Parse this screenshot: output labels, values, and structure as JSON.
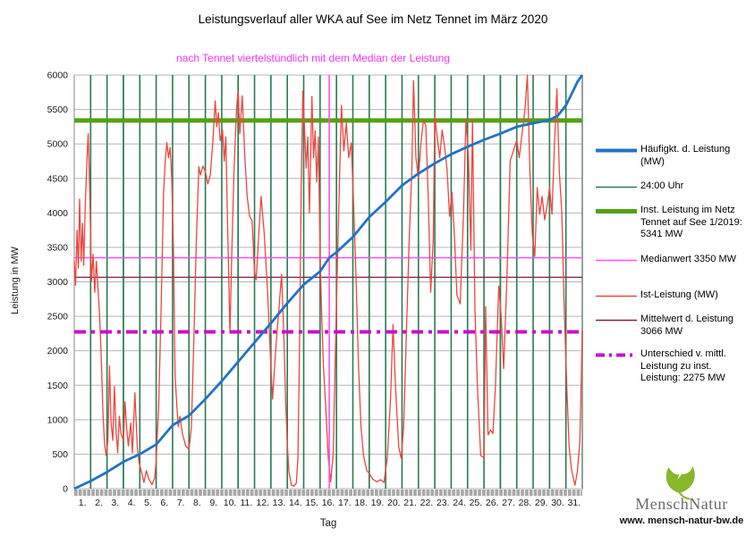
{
  "title": "Leistungsverlauf aller WKA auf See im Netz Tennet im März 2020",
  "subtitle": "nach Tennet viertelstündlich mit dem Median der Leistung",
  "axes": {
    "y_label": "Leistung in MW",
    "x_label": "Tag"
  },
  "legend": {
    "items": [
      {
        "label": "Häufigkt. d. Leistung (MW)",
        "color": "#2173c2",
        "width": 4,
        "dash": ""
      },
      {
        "label": "24:00 Uhr",
        "color": "#2a7a52",
        "width": 1.4,
        "dash": ""
      },
      {
        "label": "Inst. Leistung im Netz Tennet auf See 1/2019: 5341  MW",
        "color": "#55a014",
        "width": 5,
        "dash": ""
      },
      {
        "label": "Medianwert 3350 MW",
        "color": "#fb4ef7",
        "width": 1.6,
        "dash": ""
      },
      {
        "label": "Ist-Leistung (MW)",
        "color": "#ed4640",
        "width": 1.6,
        "dash": ""
      },
      {
        "label": "Mittelwert d. Leistung 3066 MW",
        "color": "#7c2150",
        "width": 1.4,
        "dash": ""
      },
      {
        "label": "Unterschied v. mittl. Leistung zu inst. Leistung: 2275 MW",
        "color": "#c90fc9",
        "width": 4,
        "dash": "10 5 3 5"
      }
    ]
  },
  "logo": {
    "brand": "MenschNatur",
    "url": "www. mensch-natur-bw.de"
  },
  "chart_data": {
    "type": "line",
    "title": "Leistungsverlauf aller WKA auf See im Netz Tennet im März 2020",
    "subtitle": "nach Tennet viertelstündlich mit dem Median der Leistung",
    "xlabel": "Tag",
    "ylabel": "Leistung in MW",
    "xlim": [
      0,
      31
    ],
    "ylim": [
      0,
      6000
    ],
    "grid": true,
    "legend_position": "right",
    "y_ticks": [
      0,
      500,
      1000,
      1500,
      2000,
      2500,
      3000,
      3500,
      4000,
      4500,
      5000,
      5500,
      6000
    ],
    "x_tick_labels": [
      "1.",
      "2.",
      "3.",
      "4.",
      "5.",
      "6.",
      "7.",
      "8.",
      "9.",
      "10.",
      "11.",
      "12.",
      "13.",
      "14.",
      "15.",
      "16.",
      "17.",
      "18.",
      "19.",
      "20.",
      "21.",
      "22.",
      "23.",
      "24.",
      "25.",
      "26.",
      "27.",
      "28.",
      "29.",
      "30.",
      "31."
    ],
    "day_lines_every_day": true,
    "pale_day_lines_at_days": [
      3,
      10,
      26
    ],
    "reference_lines": {
      "installed_capacity_mw": 5341,
      "median_mw": 3350,
      "mean_mw": 3066,
      "difference_mean_to_installed_mw": 2275,
      "median_vertical_day_position": 15.56
    },
    "series": [
      {
        "name": "Häufigkt. d. Leistung (MW)",
        "color": "#2173c2",
        "points": [
          [
            0,
            0
          ],
          [
            1,
            110
          ],
          [
            2,
            240
          ],
          [
            3,
            390
          ],
          [
            4,
            500
          ],
          [
            5,
            640
          ],
          [
            6,
            920
          ],
          [
            7,
            1060
          ],
          [
            8,
            1300
          ],
          [
            9,
            1560
          ],
          [
            10,
            1840
          ],
          [
            11,
            2120
          ],
          [
            12,
            2400
          ],
          [
            13,
            2690
          ],
          [
            14,
            2960
          ],
          [
            15,
            3150
          ],
          [
            15.56,
            3350
          ],
          [
            16,
            3430
          ],
          [
            17,
            3650
          ],
          [
            18,
            3940
          ],
          [
            19,
            4160
          ],
          [
            20,
            4400
          ],
          [
            21,
            4570
          ],
          [
            22,
            4720
          ],
          [
            23,
            4850
          ],
          [
            24,
            4960
          ],
          [
            25,
            5060
          ],
          [
            26,
            5150
          ],
          [
            27,
            5250
          ],
          [
            28,
            5300
          ],
          [
            29,
            5350
          ],
          [
            29.5,
            5410
          ],
          [
            30,
            5560
          ],
          [
            30.4,
            5750
          ],
          [
            30.7,
            5900
          ],
          [
            30.9,
            5970
          ],
          [
            31,
            6010
          ]
        ]
      },
      {
        "name": "Ist-Leistung (MW)",
        "color": "#ed4640",
        "points": [
          [
            0,
            3300
          ],
          [
            0.08,
            2950
          ],
          [
            0.17,
            3750
          ],
          [
            0.25,
            3200
          ],
          [
            0.33,
            4200
          ],
          [
            0.42,
            3300
          ],
          [
            0.5,
            3850
          ],
          [
            0.58,
            3240
          ],
          [
            0.67,
            4100
          ],
          [
            0.78,
            4800
          ],
          [
            0.85,
            5150
          ],
          [
            0.95,
            4300
          ],
          [
            1.05,
            3000
          ],
          [
            1.15,
            3400
          ],
          [
            1.25,
            2850
          ],
          [
            1.35,
            3300
          ],
          [
            1.45,
            2900
          ],
          [
            1.55,
            2500
          ],
          [
            1.65,
            1900
          ],
          [
            1.75,
            1100
          ],
          [
            1.85,
            650
          ],
          [
            1.95,
            480
          ],
          [
            2.05,
            700
          ],
          [
            2.15,
            1780
          ],
          [
            2.25,
            950
          ],
          [
            2.35,
            700
          ],
          [
            2.45,
            1480
          ],
          [
            2.55,
            850
          ],
          [
            2.65,
            520
          ],
          [
            2.75,
            1050
          ],
          [
            2.85,
            800
          ],
          [
            3,
            700
          ],
          [
            3.1,
            1260
          ],
          [
            3.2,
            880
          ],
          [
            3.3,
            620
          ],
          [
            3.45,
            950
          ],
          [
            3.55,
            520
          ],
          [
            3.7,
            1390
          ],
          [
            3.85,
            600
          ],
          [
            3.95,
            380
          ],
          [
            4.1,
            250
          ],
          [
            4.25,
            90
          ],
          [
            4.4,
            260
          ],
          [
            4.55,
            140
          ],
          [
            4.75,
            60
          ],
          [
            4.9,
            150
          ],
          [
            5,
            400
          ],
          [
            5.15,
            1200
          ],
          [
            5.3,
            2600
          ],
          [
            5.45,
            4300
          ],
          [
            5.55,
            4750
          ],
          [
            5.65,
            5020
          ],
          [
            5.75,
            4800
          ],
          [
            5.85,
            4950
          ],
          [
            5.95,
            4500
          ],
          [
            6.05,
            3500
          ],
          [
            6.15,
            1650
          ],
          [
            6.25,
            1250
          ],
          [
            6.35,
            900
          ],
          [
            6.45,
            1050
          ],
          [
            6.6,
            800
          ],
          [
            6.8,
            620
          ],
          [
            7,
            570
          ],
          [
            7.15,
            900
          ],
          [
            7.3,
            2200
          ],
          [
            7.45,
            3600
          ],
          [
            7.6,
            4670
          ],
          [
            7.7,
            4550
          ],
          [
            7.85,
            4680
          ],
          [
            8,
            4600
          ],
          [
            8.15,
            4420
          ],
          [
            8.3,
            4550
          ],
          [
            8.45,
            5000
          ],
          [
            8.6,
            5625
          ],
          [
            8.7,
            5250
          ],
          [
            8.8,
            5450
          ],
          [
            8.9,
            5050
          ],
          [
            9.05,
            5200
          ],
          [
            9.15,
            4750
          ],
          [
            9.25,
            5100
          ],
          [
            9.35,
            3900
          ],
          [
            9.5,
            2255
          ],
          [
            9.6,
            3300
          ],
          [
            9.75,
            4600
          ],
          [
            9.9,
            5500
          ],
          [
            10,
            5770
          ],
          [
            10.1,
            5150
          ],
          [
            10.25,
            5700
          ],
          [
            10.4,
            4850
          ],
          [
            10.55,
            4240
          ],
          [
            10.7,
            3950
          ],
          [
            10.85,
            3890
          ],
          [
            11,
            3150
          ],
          [
            11.1,
            3030
          ],
          [
            11.25,
            3650
          ],
          [
            11.4,
            4240
          ],
          [
            11.6,
            3680
          ],
          [
            11.8,
            2850
          ],
          [
            12,
            1750
          ],
          [
            12.1,
            1300
          ],
          [
            12.3,
            2050
          ],
          [
            12.5,
            2640
          ],
          [
            12.65,
            3110
          ],
          [
            12.8,
            2150
          ],
          [
            12.9,
            1250
          ],
          [
            13,
            650
          ],
          [
            13.1,
            250
          ],
          [
            13.25,
            50
          ],
          [
            13.4,
            35
          ],
          [
            13.55,
            80
          ],
          [
            13.65,
            450
          ],
          [
            13.75,
            2100
          ],
          [
            13.85,
            4400
          ],
          [
            13.95,
            5770
          ],
          [
            14.05,
            5250
          ],
          [
            14.15,
            4650
          ],
          [
            14.25,
            5100
          ],
          [
            14.35,
            4000
          ],
          [
            14.5,
            5690
          ],
          [
            14.6,
            4800
          ],
          [
            14.7,
            5190
          ],
          [
            14.8,
            4450
          ],
          [
            14.9,
            5100
          ],
          [
            15,
            3400
          ],
          [
            15.1,
            2500
          ],
          [
            15.2,
            1800
          ],
          [
            15.35,
            1150
          ],
          [
            15.5,
            450
          ],
          [
            15.65,
            100
          ],
          [
            15.8,
            500
          ],
          [
            15.9,
            1600
          ],
          [
            16.05,
            3200
          ],
          [
            16.2,
            4600
          ],
          [
            16.3,
            5560
          ],
          [
            16.45,
            4900
          ],
          [
            16.6,
            5300
          ],
          [
            16.75,
            4800
          ],
          [
            16.9,
            5015
          ],
          [
            17.05,
            4100
          ],
          [
            17.2,
            3030
          ],
          [
            17.35,
            1740
          ],
          [
            17.5,
            900
          ],
          [
            17.65,
            480
          ],
          [
            17.85,
            260
          ],
          [
            18,
            220
          ],
          [
            18.2,
            140
          ],
          [
            18.45,
            100
          ],
          [
            18.7,
            130
          ],
          [
            18.9,
            90
          ],
          [
            19.1,
            450
          ],
          [
            19.3,
            1300
          ],
          [
            19.45,
            2380
          ],
          [
            19.6,
            1500
          ],
          [
            19.8,
            600
          ],
          [
            19.95,
            440
          ],
          [
            20.1,
            900
          ],
          [
            20.3,
            2500
          ],
          [
            20.45,
            3700
          ],
          [
            20.6,
            4600
          ],
          [
            20.7,
            5920
          ],
          [
            20.85,
            4800
          ],
          [
            21,
            4500
          ],
          [
            21.15,
            5000
          ],
          [
            21.3,
            5340
          ],
          [
            21.45,
            5275
          ],
          [
            21.6,
            4200
          ],
          [
            21.75,
            2850
          ],
          [
            21.9,
            3600
          ],
          [
            22,
            5400
          ],
          [
            22.15,
            5100
          ],
          [
            22.3,
            4800
          ],
          [
            22.45,
            5200
          ],
          [
            22.6,
            4950
          ],
          [
            22.75,
            4630
          ],
          [
            22.9,
            3950
          ],
          [
            23.05,
            4300
          ],
          [
            23.2,
            3650
          ],
          [
            23.35,
            2810
          ],
          [
            23.55,
            2680
          ],
          [
            23.75,
            4000
          ],
          [
            23.9,
            5365
          ],
          [
            24.05,
            4800
          ],
          [
            24.2,
            3460
          ],
          [
            24.3,
            5365
          ],
          [
            24.45,
            2590
          ],
          [
            24.6,
            1500
          ],
          [
            24.8,
            480
          ],
          [
            25,
            450
          ],
          [
            25.1,
            2640
          ],
          [
            25.25,
            780
          ],
          [
            25.4,
            850
          ],
          [
            25.55,
            800
          ],
          [
            25.7,
            1500
          ],
          [
            25.9,
            2940
          ],
          [
            26.05,
            2500
          ],
          [
            26.2,
            1740
          ],
          [
            26.4,
            3050
          ],
          [
            26.6,
            4760
          ],
          [
            26.8,
            4900
          ],
          [
            27,
            5055
          ],
          [
            27.15,
            4800
          ],
          [
            27.3,
            5100
          ],
          [
            27.5,
            5500
          ],
          [
            27.65,
            6090
          ],
          [
            27.8,
            4600
          ],
          [
            27.95,
            3680
          ],
          [
            28.1,
            3370
          ],
          [
            28.25,
            4370
          ],
          [
            28.4,
            3980
          ],
          [
            28.55,
            4240
          ],
          [
            28.7,
            3900
          ],
          [
            28.85,
            4100
          ],
          [
            29,
            4370
          ],
          [
            29.15,
            3980
          ],
          [
            29.3,
            5015
          ],
          [
            29.45,
            5800
          ],
          [
            29.6,
            4600
          ],
          [
            29.75,
            4000
          ],
          [
            29.9,
            2600
          ],
          [
            30.05,
            1500
          ],
          [
            30.2,
            600
          ],
          [
            30.35,
            260
          ],
          [
            30.55,
            50
          ],
          [
            30.7,
            250
          ],
          [
            30.85,
            700
          ],
          [
            31,
            2290
          ]
        ]
      }
    ]
  }
}
